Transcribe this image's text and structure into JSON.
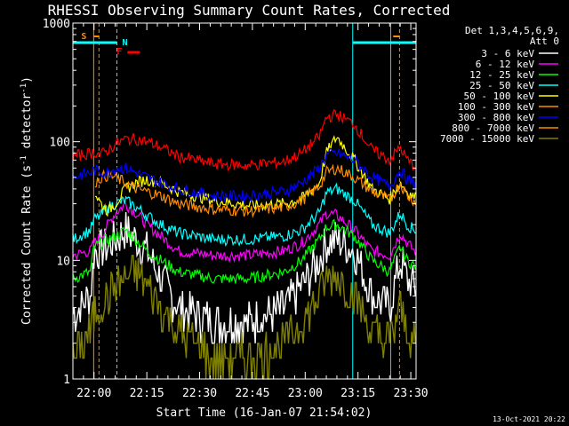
{
  "chart_data": {
    "type": "line",
    "title": "RHESSI Observing Summary Count Rates, Corrected",
    "xlabel": "Start Time (16-Jan-07 21:54:02)",
    "ylabel": "Corrected Count Rate (s",
    "ylabel_sup1": "-1",
    "ylabel_mid": " detector",
    "ylabel_sup2": "-1",
    "ylabel_end": ")",
    "y_scale": "log",
    "ylim": [
      1,
      1000
    ],
    "y_ticks": [
      1,
      10,
      100,
      1000
    ],
    "y_tick_labels": [
      "1",
      "10",
      "100",
      "1000"
    ],
    "xlim": [
      "21:54:02",
      "23:31:30"
    ],
    "x_tick_labels": [
      "22:00",
      "22:15",
      "22:30",
      "22:45",
      "23:00",
      "23:15",
      "23:30"
    ],
    "x_tick_minutes": [
      360,
      1260,
      2160,
      3060,
      3960,
      4860,
      5760
    ],
    "legend_header": [
      "Det 1,3,4,5,6,9,",
      "Att 0"
    ],
    "legend_placement": "right-outside",
    "timestamp": "13-Oct-2021 20:22",
    "markers": {
      "S": {
        "label": "S",
        "color": "#ff8c00"
      },
      "N": {
        "label": "N",
        "color": "#00ffff"
      },
      "F": {
        "label": "F",
        "color": "#ff0000"
      }
    },
    "x_minutes_from_start": [
      0,
      5,
      6,
      8,
      10,
      12,
      15,
      18,
      21,
      25,
      30,
      40,
      50,
      60,
      65,
      70,
      72,
      75,
      80,
      85,
      90,
      93,
      95,
      97
    ],
    "series": [
      {
        "name": "3 - 6 keV",
        "color": "#ffffff",
        "legend_color": "#ffffff",
        "values": [
          3.5,
          5,
          12,
          12,
          13,
          15,
          18,
          15,
          12,
          7,
          4,
          3,
          3,
          4,
          6,
          10,
          14,
          15,
          12,
          5,
          4,
          10,
          7,
          6
        ]
      },
      {
        "name": "6 - 12 keV",
        "color": "#ff00ff",
        "legend_color": "#ff00ff",
        "values": [
          11,
          12,
          14,
          16,
          20,
          25,
          30,
          25,
          20,
          16,
          12,
          11,
          11,
          12,
          14,
          20,
          25,
          24,
          18,
          12,
          11,
          17,
          14,
          12
        ]
      },
      {
        "name": "12 - 25 keV",
        "color": "#00ff00",
        "legend_color": "#00ff00",
        "values": [
          7,
          8,
          13,
          14,
          15,
          16,
          18,
          15,
          12,
          10,
          8,
          7,
          7,
          8,
          10,
          15,
          19,
          20,
          16,
          10,
          8,
          13,
          10,
          9
        ]
      },
      {
        "name": "25 - 50 keV",
        "color": "#00ffff",
        "legend_color": "#00ffff",
        "values": [
          15,
          18,
          22,
          24,
          28,
          30,
          32,
          28,
          24,
          20,
          17,
          15,
          15,
          16,
          18,
          25,
          37,
          40,
          32,
          20,
          17,
          25,
          20,
          18
        ]
      },
      {
        "name": "50 - 100 keV",
        "color": "#ffff00",
        "legend_color": "#ffff00",
        "values": [
          null,
          null,
          38,
          30,
          26,
          30,
          40,
          45,
          48,
          45,
          38,
          32,
          29,
          30,
          33,
          45,
          80,
          110,
          70,
          40,
          33,
          45,
          38,
          34
        ]
      },
      {
        "name": "100 - 300 keV",
        "color": "#ff8c00",
        "legend_color": "#ff8c00",
        "values": [
          null,
          null,
          45,
          50,
          52,
          50,
          45,
          40,
          38,
          35,
          30,
          27,
          26,
          28,
          32,
          42,
          55,
          60,
          50,
          38,
          32,
          45,
          35,
          32
        ]
      },
      {
        "name": "300 - 800 keV",
        "color": "#0000ff",
        "legend_color": "#0000ff",
        "values": [
          50,
          55,
          58,
          55,
          55,
          60,
          60,
          55,
          50,
          45,
          40,
          35,
          35,
          38,
          45,
          60,
          78,
          80,
          70,
          50,
          42,
          58,
          48,
          44
        ]
      },
      {
        "name": "800 - 7000 keV",
        "color": "#ff0000",
        "legend_color": "#ff8c00",
        "values": [
          75,
          80,
          82,
          78,
          85,
          95,
          105,
          105,
          100,
          90,
          75,
          65,
          63,
          68,
          80,
          110,
          160,
          170,
          140,
          85,
          70,
          90,
          70,
          63
        ]
      },
      {
        "name": "7000 - 15000 keV",
        "color": "#808000",
        "legend_color": "#808000",
        "values": [
          1.5,
          2.5,
          3.5,
          4,
          5,
          6,
          7,
          8,
          6,
          4,
          2.5,
          1.5,
          1.5,
          2,
          3,
          5,
          7,
          7.5,
          5,
          2.5,
          2,
          4,
          2.5,
          2
        ]
      }
    ]
  }
}
